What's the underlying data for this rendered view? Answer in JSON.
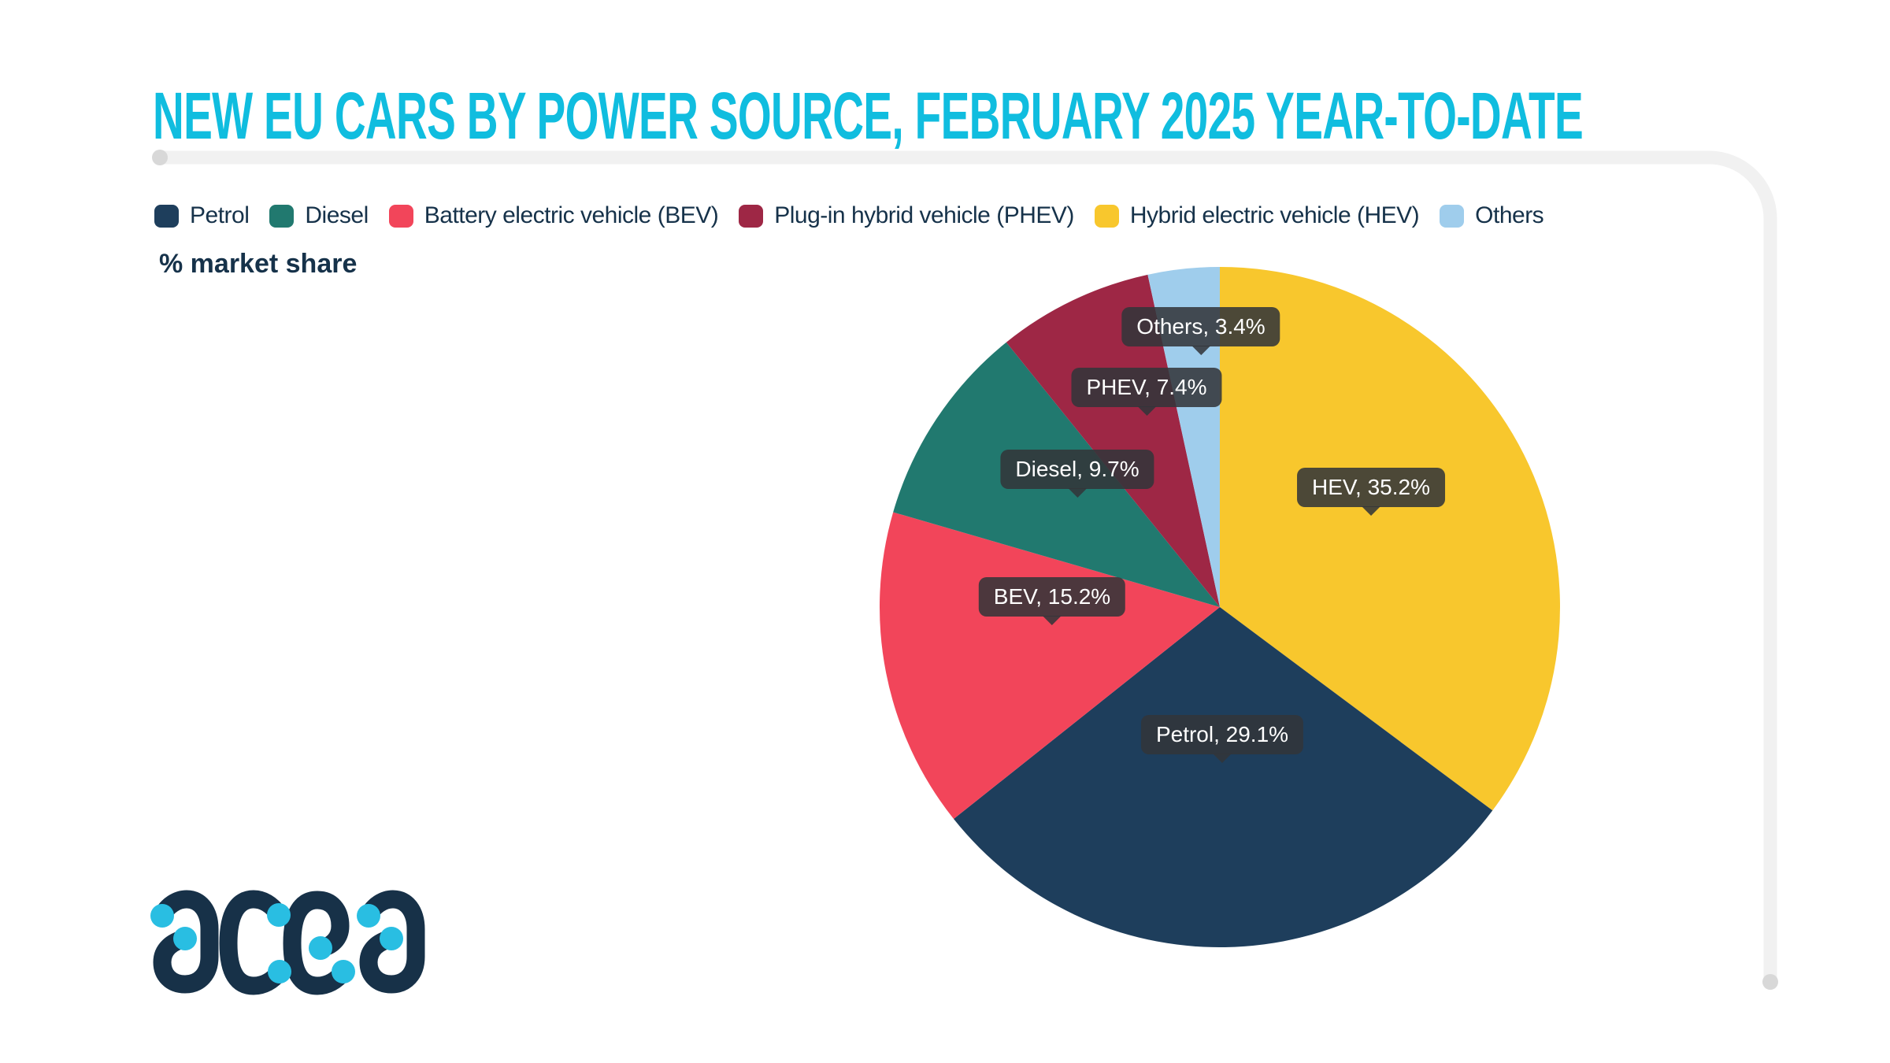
{
  "title": "NEW EU CARS BY POWER SOURCE, FEBRUARY 2025 YEAR-TO-DATE",
  "subtitle": "% market share",
  "legend": {
    "items": [
      {
        "label": "Petrol",
        "color": "#1e3e5c"
      },
      {
        "label": "Diesel",
        "color": "#21796f"
      },
      {
        "label": "Battery electric vehicle (BEV)",
        "color": "#f2455a"
      },
      {
        "label": "Plug-in hybrid vehicle (PHEV)",
        "color": "#9e2745"
      },
      {
        "label": "Hybrid electric vehicle (HEV)",
        "color": "#f8c72d"
      },
      {
        "label": "Others",
        "color": "#9fcdec"
      }
    ]
  },
  "chart_data": {
    "type": "pie",
    "title": "NEW EU CARS BY POWER SOURCE, FEBRUARY 2025 YEAR-TO-DATE",
    "unit": "% market share",
    "start_angle_deg": -90,
    "direction": "clockwise",
    "slices": [
      {
        "label": "Hybrid electric vehicle (HEV)",
        "short": "HEV",
        "value": 35.2,
        "color": "#f8c72d"
      },
      {
        "label": "Petrol",
        "short": "Petrol",
        "value": 29.1,
        "color": "#1e3e5c"
      },
      {
        "label": "Battery electric vehicle (BEV)",
        "short": "BEV",
        "value": 15.2,
        "color": "#f2455a"
      },
      {
        "label": "Diesel",
        "short": "Diesel",
        "value": 9.7,
        "color": "#21796f"
      },
      {
        "label": "Plug-in hybrid vehicle (PHEV)",
        "short": "PHEV",
        "value": 7.4,
        "color": "#9e2745"
      },
      {
        "label": "Others",
        "short": "Others",
        "value": 3.4,
        "color": "#9fcdec"
      }
    ],
    "callouts": [
      {
        "text": "Others, 3.4%"
      },
      {
        "text": "PHEV, 7.4%"
      },
      {
        "text": "Diesel, 9.7%"
      },
      {
        "text": "BEV, 15.2%"
      },
      {
        "text": "HEV, 35.2%"
      },
      {
        "text": "Petrol, 29.1%"
      }
    ]
  },
  "logo": {
    "name": "acea"
  },
  "colors": {
    "title": "#10bddf",
    "text_dark": "#16324a",
    "tooltip_bg": "rgba(50,53,57,0.87)",
    "frame_line": "#f1f1f1",
    "frame_cap": "#d8d8d8",
    "logo_text": "#173148",
    "logo_dot": "#29bee2"
  }
}
